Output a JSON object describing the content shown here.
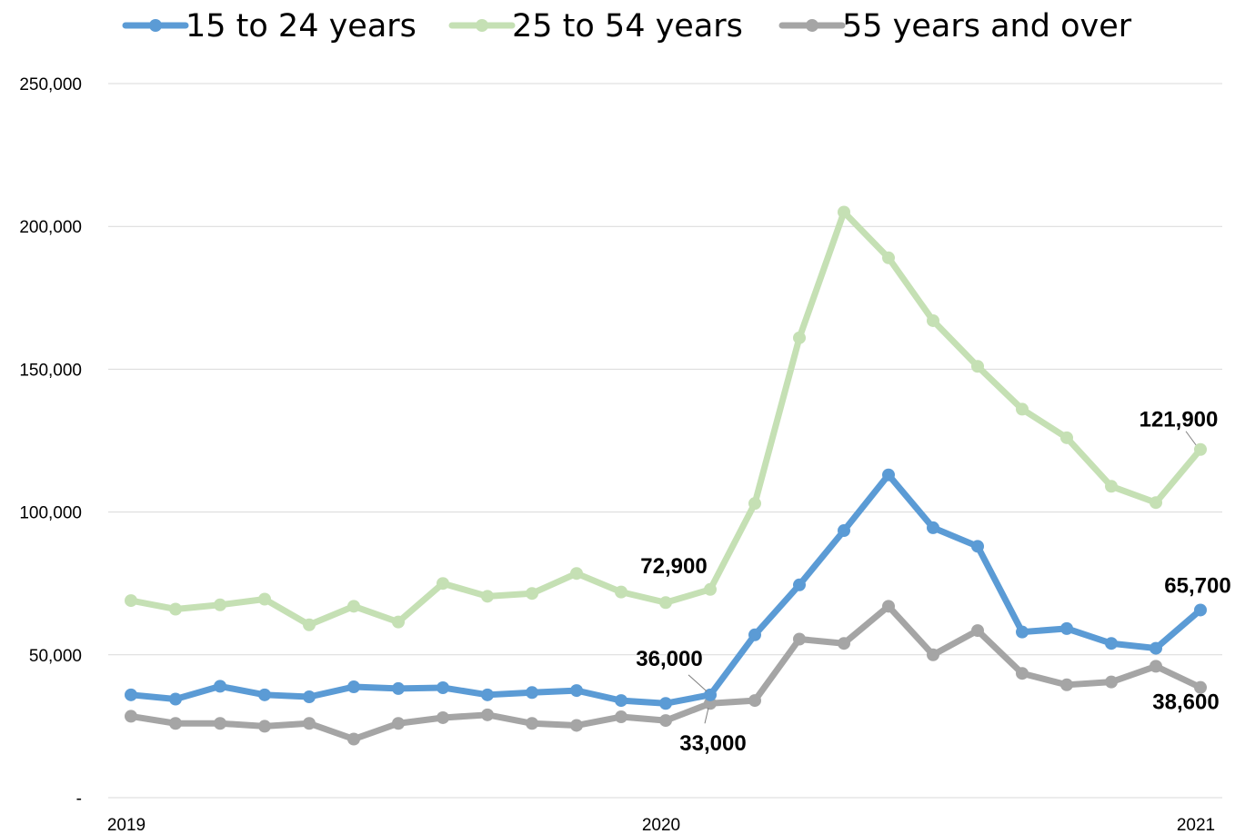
{
  "chart_data": {
    "type": "line",
    "title": "",
    "xlabel": "",
    "ylabel": "",
    "ylim": [
      0,
      250000
    ],
    "y_ticks": [
      0,
      50000,
      100000,
      150000,
      200000,
      250000
    ],
    "y_tick_labels": [
      "-",
      "50,000",
      "100,000",
      "150,000",
      "200,000",
      "250,000"
    ],
    "x_tick_labels": [
      "2019",
      "2020",
      "2021"
    ],
    "grid": true,
    "legend_position": "top",
    "x": [
      "2019-01",
      "2019-02",
      "2019-03",
      "2019-04",
      "2019-05",
      "2019-06",
      "2019-07",
      "2019-08",
      "2019-09",
      "2019-10",
      "2019-11",
      "2019-12",
      "2020-01",
      "2020-02",
      "2020-03",
      "2020-04",
      "2020-05",
      "2020-06",
      "2020-07",
      "2020-08",
      "2020-09",
      "2020-10",
      "2020-11",
      "2020-12",
      "2021-01"
    ],
    "series": [
      {
        "name": "15 to 24 years",
        "color": "#5B9BD5",
        "values": [
          36000,
          34500,
          39000,
          36000,
          35300,
          38800,
          38200,
          38500,
          36000,
          36800,
          37500,
          34000,
          33000,
          36000,
          57000,
          74500,
          93500,
          113000,
          94500,
          88000,
          58000,
          59200,
          54000,
          52300,
          65700
        ]
      },
      {
        "name": "25 to 54 years",
        "color": "#C5E0B4",
        "values": [
          69000,
          66000,
          67500,
          69500,
          60500,
          67000,
          61500,
          75000,
          70500,
          71500,
          78500,
          72000,
          68300,
          72900,
          103000,
          161000,
          205000,
          189000,
          167000,
          151000,
          136000,
          126000,
          109000,
          103300,
          121900
        ]
      },
      {
        "name": "55 years and over",
        "color": "#A5A5A5",
        "values": [
          28500,
          26000,
          26000,
          25000,
          26000,
          20500,
          26000,
          28000,
          29000,
          26000,
          25300,
          28300,
          27000,
          33000,
          34000,
          55500,
          54000,
          67000,
          50000,
          58500,
          43500,
          39500,
          40500,
          46000,
          38600
        ]
      }
    ],
    "annotations": [
      {
        "text": "72,900",
        "series": 1,
        "index": 13
      },
      {
        "text": "36,000",
        "series": 0,
        "index": 13
      },
      {
        "text": "33,000",
        "series": 2,
        "index": 13
      },
      {
        "text": "121,900",
        "series": 1,
        "index": 24
      },
      {
        "text": "65,700",
        "series": 0,
        "index": 24
      },
      {
        "text": "38,600",
        "series": 2,
        "index": 24
      }
    ]
  }
}
